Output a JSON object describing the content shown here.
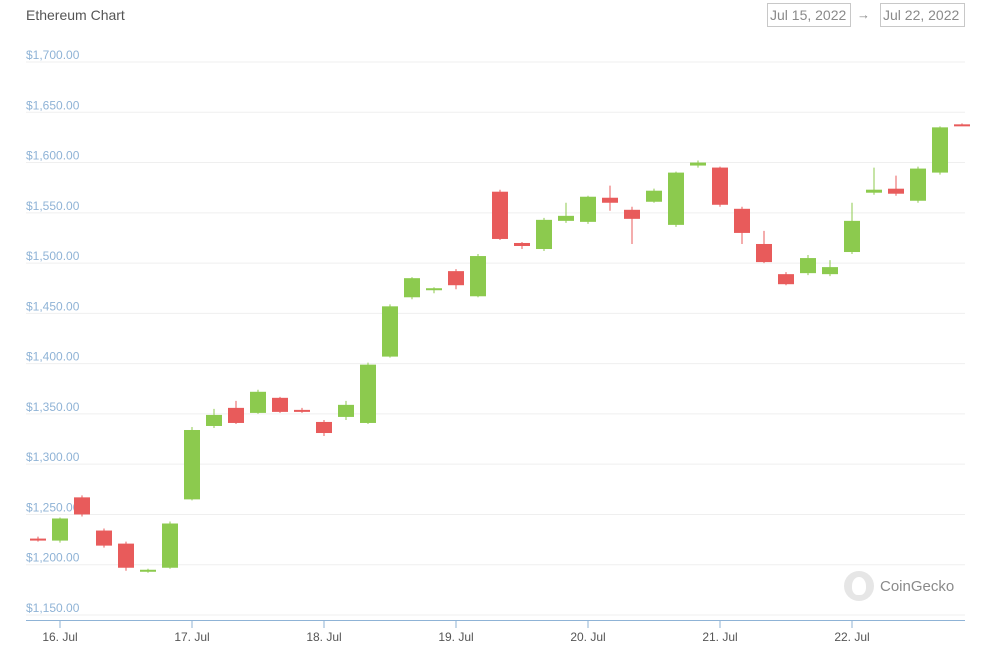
{
  "header": {
    "title": "Ethereum Chart",
    "date_from": "Jul 15, 2022",
    "date_to": "Jul 22, 2022",
    "arrow": "→"
  },
  "watermark": {
    "text": "CoinGecko",
    "icon": "coingecko-logo-icon"
  },
  "colors": {
    "up": "#8cca4e",
    "down": "#e85b5b",
    "grid": "#efefef",
    "ytick": "#8fb3d6"
  },
  "chart_data": {
    "type": "candlestick",
    "title": "Ethereum Chart",
    "xlabel": "",
    "ylabel": "",
    "ylim": [
      1150,
      1700
    ],
    "grid": true,
    "y_ticks": [
      1700,
      1650,
      1600,
      1550,
      1500,
      1450,
      1400,
      1350,
      1300,
      1250,
      1200,
      1150
    ],
    "y_tick_labels": [
      "$1,700.00",
      "$1,650.00",
      "$1,600.00",
      "$1,550.00",
      "$1,500.00",
      "$1,450.00",
      "$1,400.00",
      "$1,350.00",
      "$1,300.00",
      "$1,250.00",
      "$1,200.00",
      "$1,150.00"
    ],
    "x_tick_labels": [
      "16. Jul",
      "17. Jul",
      "18. Jul",
      "19. Jul",
      "20. Jul",
      "21. Jul",
      "22. Jul"
    ],
    "x_tick_hours": [
      0,
      24,
      48,
      72,
      96,
      120,
      144
    ],
    "interval_hours": 4,
    "candles": [
      {
        "t": -4,
        "o": 1226,
        "h": 1228,
        "l": 1223,
        "c": 1225
      },
      {
        "t": 0,
        "o": 1224,
        "h": 1247,
        "l": 1222,
        "c": 1246
      },
      {
        "t": 4,
        "o": 1267,
        "h": 1269,
        "l": 1248,
        "c": 1250
      },
      {
        "t": 8,
        "o": 1234,
        "h": 1236,
        "l": 1217,
        "c": 1219
      },
      {
        "t": 12,
        "o": 1221,
        "h": 1223,
        "l": 1194,
        "c": 1197
      },
      {
        "t": 16,
        "o": 1193,
        "h": 1196,
        "l": 1192,
        "c": 1195
      },
      {
        "t": 20,
        "o": 1197,
        "h": 1243,
        "l": 1196,
        "c": 1241
      },
      {
        "t": 24,
        "o": 1265,
        "h": 1337,
        "l": 1264,
        "c": 1334
      },
      {
        "t": 28,
        "o": 1338,
        "h": 1355,
        "l": 1336,
        "c": 1349
      },
      {
        "t": 32,
        "o": 1356,
        "h": 1363,
        "l": 1340,
        "c": 1341
      },
      {
        "t": 36,
        "o": 1351,
        "h": 1374,
        "l": 1350,
        "c": 1372
      },
      {
        "t": 40,
        "o": 1366,
        "h": 1367,
        "l": 1351,
        "c": 1352
      },
      {
        "t": 44,
        "o": 1354,
        "h": 1356,
        "l": 1351,
        "c": 1353
      },
      {
        "t": 48,
        "o": 1342,
        "h": 1344,
        "l": 1328,
        "c": 1331
      },
      {
        "t": 52,
        "o": 1347,
        "h": 1363,
        "l": 1344,
        "c": 1359
      },
      {
        "t": 56,
        "o": 1341,
        "h": 1401,
        "l": 1340,
        "c": 1399
      },
      {
        "t": 60,
        "o": 1407,
        "h": 1459,
        "l": 1406,
        "c": 1457
      },
      {
        "t": 64,
        "o": 1466,
        "h": 1486,
        "l": 1464,
        "c": 1485
      },
      {
        "t": 68,
        "o": 1473,
        "h": 1476,
        "l": 1470,
        "c": 1475
      },
      {
        "t": 72,
        "o": 1492,
        "h": 1494,
        "l": 1474,
        "c": 1478
      },
      {
        "t": 76,
        "o": 1467,
        "h": 1509,
        "l": 1466,
        "c": 1507
      },
      {
        "t": 80,
        "o": 1571,
        "h": 1573,
        "l": 1523,
        "c": 1524
      },
      {
        "t": 84,
        "o": 1520,
        "h": 1521,
        "l": 1514,
        "c": 1517
      },
      {
        "t": 88,
        "o": 1514,
        "h": 1545,
        "l": 1512,
        "c": 1543
      },
      {
        "t": 92,
        "o": 1542,
        "h": 1560,
        "l": 1540,
        "c": 1547
      },
      {
        "t": 96,
        "o": 1541,
        "h": 1567,
        "l": 1539,
        "c": 1566
      },
      {
        "t": 100,
        "o": 1565,
        "h": 1577,
        "l": 1552,
        "c": 1560
      },
      {
        "t": 104,
        "o": 1553,
        "h": 1556,
        "l": 1519,
        "c": 1544
      },
      {
        "t": 108,
        "o": 1561,
        "h": 1574,
        "l": 1560,
        "c": 1572
      },
      {
        "t": 112,
        "o": 1538,
        "h": 1591,
        "l": 1536,
        "c": 1590
      },
      {
        "t": 116,
        "o": 1597,
        "h": 1602,
        "l": 1595,
        "c": 1600
      },
      {
        "t": 120,
        "o": 1595,
        "h": 1596,
        "l": 1556,
        "c": 1558
      },
      {
        "t": 124,
        "o": 1554,
        "h": 1556,
        "l": 1519,
        "c": 1530
      },
      {
        "t": 128,
        "o": 1519,
        "h": 1532,
        "l": 1500,
        "c": 1501
      },
      {
        "t": 132,
        "o": 1489,
        "h": 1491,
        "l": 1478,
        "c": 1479
      },
      {
        "t": 136,
        "o": 1490,
        "h": 1508,
        "l": 1488,
        "c": 1505
      },
      {
        "t": 140,
        "o": 1489,
        "h": 1503,
        "l": 1487,
        "c": 1496
      },
      {
        "t": 144,
        "o": 1511,
        "h": 1560,
        "l": 1509,
        "c": 1542
      },
      {
        "t": 148,
        "o": 1570,
        "h": 1595,
        "l": 1568,
        "c": 1573
      },
      {
        "t": 152,
        "o": 1574,
        "h": 1587,
        "l": 1567,
        "c": 1569
      },
      {
        "t": 156,
        "o": 1562,
        "h": 1596,
        "l": 1560,
        "c": 1594
      },
      {
        "t": 160,
        "o": 1590,
        "h": 1636,
        "l": 1588,
        "c": 1635
      },
      {
        "t": 164,
        "o": 1638,
        "h": 1639,
        "l": 1637,
        "c": 1637
      }
    ]
  }
}
